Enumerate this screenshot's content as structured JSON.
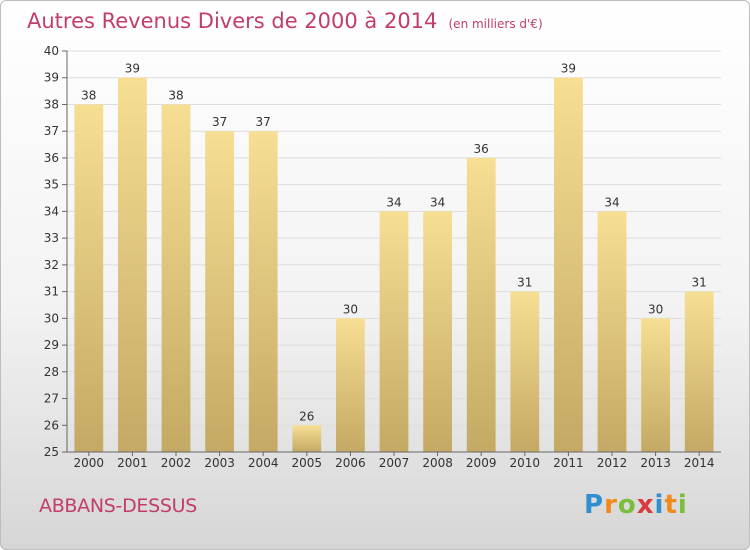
{
  "title": "Autres Revenus Divers de 2000 à 2014",
  "unit": "(en milliers d'€)",
  "commune": "ABBANS-DESSUS",
  "brand": {
    "letters": [
      "P",
      "r",
      "o",
      "x",
      "i",
      "t",
      "i"
    ],
    "colors": [
      "#2f8fd1",
      "#f08a1d",
      "#7cbd3b",
      "#d93b3b",
      "#2f8fd1",
      "#f08a1d",
      "#7cbd3b"
    ]
  },
  "colors": {
    "bar_light": "#f6de93",
    "bar_dark": "#c4a964",
    "grid": "#dddddd",
    "axis": "#666666",
    "text": "#333333"
  },
  "chart_data": {
    "type": "bar",
    "categories": [
      "2000",
      "2001",
      "2002",
      "2003",
      "2004",
      "2005",
      "2006",
      "2007",
      "2008",
      "2009",
      "2010",
      "2011",
      "2012",
      "2013",
      "2014"
    ],
    "values": [
      38,
      39,
      38,
      37,
      37,
      26,
      30,
      34,
      34,
      36,
      31,
      39,
      34,
      30,
      31
    ],
    "ylim": [
      25,
      40
    ],
    "yticks": [
      25,
      26,
      27,
      28,
      29,
      30,
      31,
      32,
      33,
      34,
      35,
      36,
      37,
      38,
      39,
      40
    ],
    "grid": true,
    "data_labels": true
  }
}
